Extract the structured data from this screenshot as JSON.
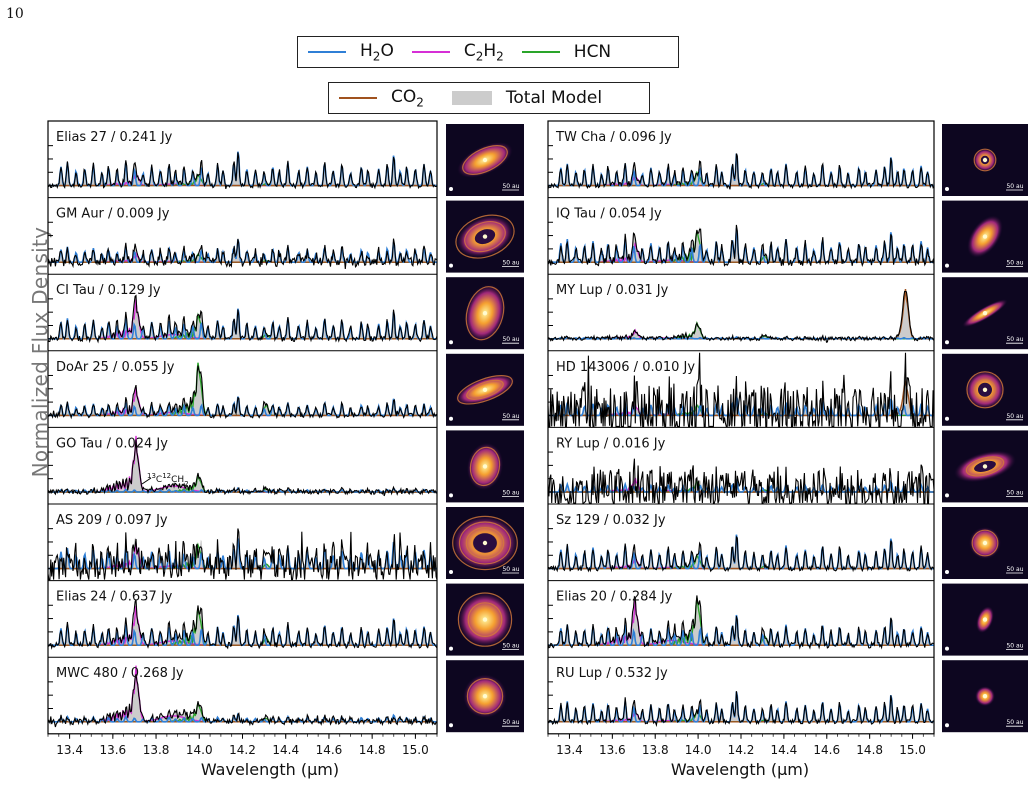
{
  "page_number": "10",
  "legend": {
    "row1": [
      {
        "label": "H",
        "sub": "2",
        "rest": "O",
        "color": "#2f7fd6",
        "kind": "line"
      },
      {
        "label": "C",
        "sub": "2",
        "rest": "H",
        "sub2": "2",
        "color": "#d62fd6",
        "kind": "line"
      },
      {
        "label": "HCN",
        "color": "#2aa52a",
        "kind": "line"
      }
    ],
    "row2": [
      {
        "label": "CO",
        "sub": "2",
        "color": "#a0521e",
        "kind": "line"
      },
      {
        "label": "Total Model",
        "color": "#cccccc",
        "kind": "patch"
      }
    ]
  },
  "ylabel": "Normalized Flux Density",
  "xlabel": "Wavelength (μm)",
  "annotation": "13C12CH2",
  "chart_data": [
    {
      "type": "line",
      "panel": "left",
      "xlim": [
        13.3,
        15.1
      ],
      "xticks": [
        13.4,
        13.6,
        13.8,
        14.0,
        14.2,
        14.4,
        14.6,
        14.8,
        15.0
      ],
      "xtick_labels": [
        "13.4",
        "13.6",
        "13.8",
        "14.0",
        "14.2",
        "14.4",
        "14.6",
        "14.8",
        "15.0"
      ],
      "xlabel": "Wavelength (μm)",
      "ylabel": "Normalized Flux Density",
      "series_names": [
        "H2O",
        "C2H2",
        "HCN",
        "CO2",
        "Total Model"
      ],
      "subplots": [
        {
          "label": "Elias 27 / 0.241 Jy",
          "c2h2": 0.25,
          "hcn": 0.2,
          "co2": 0.0,
          "noise": 0.05,
          "water": 0.9
        },
        {
          "label": "GM Aur / 0.009 Jy",
          "c2h2": 0.15,
          "hcn": 0.15,
          "co2": 0.0,
          "noise": 0.1,
          "water": 0.6
        },
        {
          "label": "CI Tau / 0.129 Jy",
          "c2h2": 0.7,
          "hcn": 0.45,
          "co2": 0.0,
          "noise": 0.06,
          "water": 0.8
        },
        {
          "label": "DoAr 25 / 0.055 Jy",
          "c2h2": 0.5,
          "hcn": 1.0,
          "co2": 0.0,
          "noise": 0.05,
          "water": 0.5
        },
        {
          "label": "GO Tau / 0.024 Jy",
          "c2h2": 1.0,
          "hcn": 0.3,
          "co2": 0.0,
          "noise": 0.05,
          "water": 0.1
        },
        {
          "label": "AS 209 / 0.097 Jy",
          "c2h2": 0.45,
          "hcn": 0.45,
          "co2": 0.0,
          "noise": 0.3,
          "water": 0.8
        },
        {
          "label": "Elias 24 / 0.637 Jy",
          "c2h2": 0.7,
          "hcn": 0.7,
          "co2": 0.0,
          "noise": 0.06,
          "water": 0.8
        },
        {
          "label": "MWC 480 / 0.268 Jy",
          "c2h2": 1.0,
          "hcn": 0.35,
          "co2": 0.0,
          "noise": 0.06,
          "water": 0.2
        }
      ]
    },
    {
      "type": "line",
      "panel": "right",
      "xlim": [
        13.3,
        15.1
      ],
      "xticks": [
        13.4,
        13.6,
        13.8,
        14.0,
        14.2,
        14.4,
        14.6,
        14.8,
        15.0
      ],
      "xtick_labels": [
        "13.4",
        "13.6",
        "13.8",
        "14.0",
        "14.2",
        "14.4",
        "14.6",
        "14.8",
        "15.0"
      ],
      "xlabel": "Wavelength (μm)",
      "series_names": [
        "H2O",
        "C2H2",
        "HCN",
        "CO2",
        "Total Model"
      ],
      "subplots": [
        {
          "label": "TW Cha / 0.096 Jy",
          "c2h2": 0.2,
          "hcn": 0.25,
          "co2": 0.0,
          "noise": 0.05,
          "water": 0.85
        },
        {
          "label": "IQ Tau / 0.054 Jy",
          "c2h2": 0.35,
          "hcn": 0.6,
          "co2": 0.0,
          "noise": 0.08,
          "water": 0.9
        },
        {
          "label": "MY Lup / 0.031 Jy",
          "c2h2": 0.15,
          "hcn": 0.3,
          "co2": 1.0,
          "noise": 0.04,
          "water": 0.05
        },
        {
          "label": "HD 143006 / 0.010 Jy",
          "c2h2": 0.2,
          "hcn": 0.2,
          "co2": 0.7,
          "noise": 0.6,
          "water": 0.5
        },
        {
          "label": "RY Lup / 0.016 Jy",
          "c2h2": 0.25,
          "hcn": 0.2,
          "co2": 0.0,
          "noise": 0.45,
          "water": 0.3
        },
        {
          "label": "Sz 129 / 0.032 Jy",
          "c2h2": 0.2,
          "hcn": 0.25,
          "co2": 0.0,
          "noise": 0.05,
          "water": 0.9
        },
        {
          "label": "Elias 20 / 0.284 Jy",
          "c2h2": 0.8,
          "hcn": 0.9,
          "co2": 0.0,
          "noise": 0.06,
          "water": 0.8
        },
        {
          "label": "RU Lup / 0.532 Jy",
          "c2h2": 0.2,
          "hcn": 0.2,
          "co2": 0.0,
          "noise": 0.05,
          "water": 0.8
        }
      ]
    }
  ],
  "disk_images": {
    "scale_label": "50 au",
    "left": [
      "Elias 27",
      "GM Aur",
      "CI Tau",
      "DoAr 25",
      "GO Tau",
      "AS 209",
      "Elias 24",
      "MWC 480"
    ],
    "right": [
      "TW Cha",
      "IQ Tau",
      "MY Lup",
      "HD 143006",
      "RY Lup",
      "Sz 129",
      "Elias 20",
      "RU Lup"
    ]
  },
  "colors": {
    "h2o": "#2f7fd6",
    "c2h2": "#d62fd6",
    "hcn": "#2aa52a",
    "co2": "#a0521e",
    "total": "#cccccc",
    "data": "#000000"
  }
}
